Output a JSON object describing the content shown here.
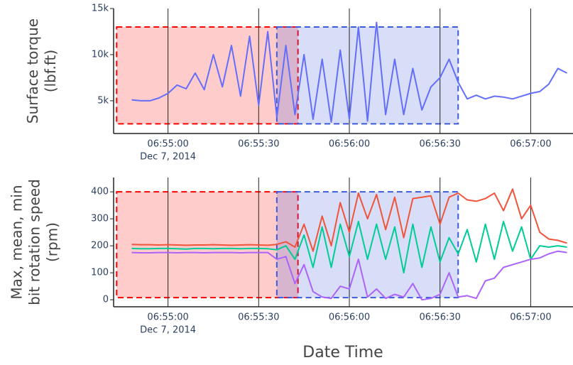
{
  "chart_data": [
    {
      "type": "line",
      "y_title": [
        "Surface torque",
        "(lbf.ft)"
      ],
      "x_date_label": "Dec 7, 2014",
      "xlim": [
        "2014-12-07 06:54:42",
        "2014-12-07 06:57:14"
      ],
      "xticks": [
        {
          "value": "2014-12-07 06:55:00",
          "label": "06:55:00"
        },
        {
          "value": "2014-12-07 06:55:30",
          "label": "06:55:30"
        },
        {
          "value": "2014-12-07 06:56:00",
          "label": "06:56:00"
        },
        {
          "value": "2014-12-07 06:56:30",
          "label": "06:56:30"
        },
        {
          "value": "2014-12-07 06:57:00",
          "label": "06:57:00"
        }
      ],
      "ylim": [
        1450,
        15000
      ],
      "yticks": [
        {
          "value": 5000,
          "label": "5k"
        },
        {
          "value": 10000,
          "label": "10k"
        },
        {
          "value": 15000,
          "label": "15k"
        }
      ],
      "x": [
        "2014-12-07 06:54:48",
        "2014-12-07 06:54:51",
        "2014-12-07 06:54:54",
        "2014-12-07 06:54:57",
        "2014-12-07 06:55:00",
        "2014-12-07 06:55:03",
        "2014-12-07 06:55:06",
        "2014-12-07 06:55:09",
        "2014-12-07 06:55:12",
        "2014-12-07 06:55:15",
        "2014-12-07 06:55:18",
        "2014-12-07 06:55:21",
        "2014-12-07 06:55:24",
        "2014-12-07 06:55:27",
        "2014-12-07 06:55:30",
        "2014-12-07 06:55:33",
        "2014-12-07 06:55:36",
        "2014-12-07 06:55:39",
        "2014-12-07 06:55:42",
        "2014-12-07 06:55:45",
        "2014-12-07 06:55:48",
        "2014-12-07 06:55:51",
        "2014-12-07 06:55:54",
        "2014-12-07 06:55:57",
        "2014-12-07 06:56:00",
        "2014-12-07 06:56:03",
        "2014-12-07 06:56:06",
        "2014-12-07 06:56:09",
        "2014-12-07 06:56:12",
        "2014-12-07 06:56:15",
        "2014-12-07 06:56:18",
        "2014-12-07 06:56:21",
        "2014-12-07 06:56:24",
        "2014-12-07 06:56:27",
        "2014-12-07 06:56:30",
        "2014-12-07 06:56:33",
        "2014-12-07 06:56:36",
        "2014-12-07 06:56:39",
        "2014-12-07 06:56:42",
        "2014-12-07 06:56:45",
        "2014-12-07 06:56:48",
        "2014-12-07 06:56:51",
        "2014-12-07 06:56:54",
        "2014-12-07 06:56:57",
        "2014-12-07 06:57:00",
        "2014-12-07 06:57:03",
        "2014-12-07 06:57:06",
        "2014-12-07 06:57:09",
        "2014-12-07 06:57:12"
      ],
      "series": [
        {
          "color": "#636efa",
          "values": [
            5100,
            5000,
            5000,
            5300,
            5800,
            6700,
            6300,
            8000,
            6200,
            10000,
            6500,
            11000,
            5500,
            12000,
            4500,
            12500,
            3200,
            11000,
            3500,
            10000,
            3000,
            9500,
            2700,
            10500,
            3000,
            13000,
            2800,
            13500,
            3500,
            9500,
            3500,
            8500,
            4000,
            6500,
            7500,
            9500,
            7000,
            5200,
            5600,
            5200,
            5500,
            5400,
            5200,
            5500,
            5800,
            6000,
            6800,
            8500,
            8000
          ]
        }
      ],
      "shapes": [
        {
          "x0": "2014-12-07 06:54:43",
          "x1": "2014-12-07 06:55:43",
          "y0": 2500,
          "y1": 13000,
          "color": "#ff0000"
        },
        {
          "x0": "2014-12-07 06:55:36",
          "x1": "2014-12-07 06:56:36",
          "y0": 2500,
          "y1": 13000,
          "color": "#3b5bdb"
        }
      ]
    },
    {
      "type": "line",
      "y_title": [
        "Max, mean, min",
        "bit rotation speed",
        "(rpm)"
      ],
      "x_date_label": "Dec 7, 2014",
      "x_title": "Date Time",
      "xlim": [
        "2014-12-07 06:54:42",
        "2014-12-07 06:57:14"
      ],
      "xticks": [
        {
          "value": "2014-12-07 06:55:00",
          "label": "06:55:00"
        },
        {
          "value": "2014-12-07 06:55:30",
          "label": "06:55:30"
        },
        {
          "value": "2014-12-07 06:56:00",
          "label": "06:56:00"
        },
        {
          "value": "2014-12-07 06:56:30",
          "label": "06:56:30"
        },
        {
          "value": "2014-12-07 06:57:00",
          "label": "06:57:00"
        }
      ],
      "ylim": [
        -26,
        453
      ],
      "yticks": [
        0,
        100,
        200,
        300,
        400
      ],
      "x": [
        "2014-12-07 06:54:48",
        "2014-12-07 06:54:51",
        "2014-12-07 06:54:54",
        "2014-12-07 06:54:57",
        "2014-12-07 06:55:00",
        "2014-12-07 06:55:03",
        "2014-12-07 06:55:06",
        "2014-12-07 06:55:09",
        "2014-12-07 06:55:12",
        "2014-12-07 06:55:15",
        "2014-12-07 06:55:18",
        "2014-12-07 06:55:21",
        "2014-12-07 06:55:24",
        "2014-12-07 06:55:27",
        "2014-12-07 06:55:30",
        "2014-12-07 06:55:33",
        "2014-12-07 06:55:36",
        "2014-12-07 06:55:39",
        "2014-12-07 06:55:42",
        "2014-12-07 06:55:45",
        "2014-12-07 06:55:48",
        "2014-12-07 06:55:51",
        "2014-12-07 06:55:54",
        "2014-12-07 06:55:57",
        "2014-12-07 06:56:00",
        "2014-12-07 06:56:03",
        "2014-12-07 06:56:06",
        "2014-12-07 06:56:09",
        "2014-12-07 06:56:12",
        "2014-12-07 06:56:15",
        "2014-12-07 06:56:18",
        "2014-12-07 06:56:21",
        "2014-12-07 06:56:24",
        "2014-12-07 06:56:27",
        "2014-12-07 06:56:30",
        "2014-12-07 06:56:33",
        "2014-12-07 06:56:36",
        "2014-12-07 06:56:39",
        "2014-12-07 06:56:42",
        "2014-12-07 06:56:45",
        "2014-12-07 06:56:48",
        "2014-12-07 06:56:51",
        "2014-12-07 06:56:54",
        "2014-12-07 06:56:57",
        "2014-12-07 06:57:00",
        "2014-12-07 06:57:03",
        "2014-12-07 06:57:06",
        "2014-12-07 06:57:09",
        "2014-12-07 06:57:12"
      ],
      "series": [
        {
          "color": "#ef553b",
          "values": [
            205,
            204,
            204,
            203,
            204,
            203,
            202,
            203,
            203,
            204,
            203,
            202,
            203,
            204,
            203,
            202,
            205,
            215,
            195,
            280,
            180,
            310,
            200,
            360,
            250,
            395,
            300,
            390,
            260,
            380,
            230,
            375,
            380,
            385,
            280,
            380,
            395,
            370,
            365,
            375,
            395,
            330,
            410,
            300,
            350,
            250,
            225,
            220,
            210
          ]
        },
        {
          "color": "#00cc96",
          "values": [
            190,
            189,
            189,
            190,
            190,
            189,
            188,
            190,
            190,
            189,
            190,
            190,
            189,
            190,
            190,
            189,
            185,
            200,
            150,
            240,
            120,
            270,
            120,
            280,
            160,
            290,
            150,
            280,
            150,
            270,
            100,
            280,
            120,
            270,
            140,
            230,
            170,
            260,
            140,
            280,
            150,
            290,
            180,
            270,
            150,
            200,
            195,
            200,
            195
          ]
        },
        {
          "color": "#ab63fa",
          "values": [
            175,
            174,
            174,
            175,
            175,
            174,
            175,
            175,
            174,
            175,
            175,
            175,
            174,
            175,
            175,
            175,
            150,
            160,
            60,
            130,
            30,
            10,
            5,
            50,
            40,
            150,
            10,
            40,
            5,
            20,
            10,
            60,
            0,
            5,
            20,
            100,
            10,
            15,
            5,
            70,
            80,
            120,
            130,
            140,
            150,
            155,
            170,
            180,
            175
          ]
        }
      ],
      "shapes": [
        {
          "x0": "2014-12-07 06:54:43",
          "x1": "2014-12-07 06:55:43",
          "y0": 8,
          "y1": 400,
          "color": "#ff0000"
        },
        {
          "x0": "2014-12-07 06:55:36",
          "x1": "2014-12-07 06:56:36",
          "y0": 8,
          "y1": 400,
          "color": "#3b5bdb"
        }
      ]
    }
  ]
}
